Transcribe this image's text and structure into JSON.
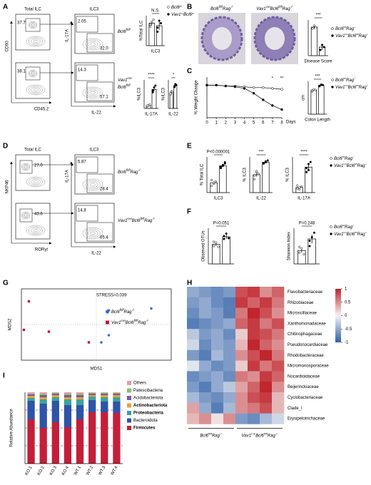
{
  "panel_labels": [
    "A",
    "B",
    "C",
    "D",
    "E",
    "F",
    "G",
    "H",
    "I"
  ],
  "A": {
    "titles": [
      "Total ILC",
      "ILC3"
    ],
    "total_axes": [
      "CD90",
      "CD45.2"
    ],
    "ilc3_axes": [
      "IL-17A",
      "IL-22"
    ],
    "total_gates": [
      "37.7",
      "38.1"
    ],
    "ilc3_gates": [
      [
        "2.05",
        "32.0"
      ],
      [
        "14.3",
        "57.1"
      ]
    ],
    "row_labels": [
      [
        [
          "Bcl6",
          "fl/fl"
        ]
      ],
      [
        [
          "Vav1",
          "cre"
        ],
        [
          "Bcl6",
          "fl/fl"
        ]
      ]
    ],
    "legend": [
      [
        "Bcl6",
        "fl/fl"
      ],
      [
        "Vav1",
        "Cre",
        "Bcl6",
        "fl/fl"
      ]
    ],
    "charts": [
      {
        "ylabel": "%Total ILC",
        "categories": [
          "ILC3"
        ],
        "sig": [
          "N.S."
        ],
        "ylim": [
          0,
          60
        ],
        "series": [
          {
            "color": "#ffffff",
            "values": [
              45
            ],
            "errors": [
              5
            ],
            "points": [
              [
                38,
                48,
                52,
                42
              ]
            ]
          },
          {
            "color": "#000000",
            "values": [
              40
            ],
            "errors": [
              8
            ],
            "points": [
              [
                28,
                50,
                45,
                36
              ]
            ]
          }
        ]
      },
      {
        "ylabel": "%ILC3",
        "categories": [
          "IL-17A"
        ],
        "sig": [
          "****"
        ],
        "ylim": [
          0,
          30
        ],
        "series": [
          {
            "color": "#ffffff",
            "values": [
              3
            ],
            "errors": [
              1
            ],
            "points": [
              [
                2,
                3,
                4,
                3
              ]
            ]
          },
          {
            "color": "#000000",
            "values": [
              20
            ],
            "errors": [
              2
            ],
            "points": [
              [
                17,
                22,
                24,
                19
              ]
            ]
          }
        ]
      },
      {
        "ylabel": "%ILC3",
        "categories": [
          "IL-22"
        ],
        "sig": [
          "*"
        ],
        "ylim": [
          0,
          100
        ],
        "series": [
          {
            "color": "#ffffff",
            "values": [
              55
            ],
            "errors": [
              5
            ],
            "points": [
              [
                48,
                60,
                58,
                52
              ]
            ]
          },
          {
            "color": "#000000",
            "values": [
              80
            ],
            "errors": [
              4
            ],
            "points": [
              [
                75,
                85,
                82,
                78
              ]
            ]
          }
        ]
      }
    ]
  },
  "B": {
    "image_labels": [
      [
        "Bcl6",
        "fl/fl",
        "Rag",
        "-/-"
      ],
      [
        "Vav1",
        "cre",
        "Bcl6",
        "fl/fl",
        "Rag",
        "-/-"
      ]
    ],
    "chart": {
      "categories": [
        "Disease Score"
      ],
      "sig": [
        "***"
      ],
      "ylim": [
        0,
        5
      ],
      "series": [
        {
          "color": "#ffffff",
          "values": [
            4
          ],
          "errors": [
            0.3
          ],
          "points": [
            [
              3.8,
              4.2,
              4.0
            ]
          ]
        },
        {
          "color": "#000000",
          "values": [
            1.2
          ],
          "errors": [
            0.4
          ],
          "points": [
            [
              0.8,
              1.5,
              1.2
            ]
          ]
        }
      ]
    },
    "legend": [
      [
        "Bcl6",
        "fl/fl",
        "Rag",
        "-/-"
      ],
      [
        "Vav1",
        "Cre",
        "Bcl6",
        "fl/fl",
        "Rag",
        "-/-"
      ]
    ]
  },
  "C": {
    "line": {
      "type": "line",
      "ylabel": "% Weight Change",
      "xlabel": "Days",
      "x": [
        0,
        1,
        2,
        3,
        4,
        5,
        6,
        7,
        8
      ],
      "xlim": [
        0,
        8
      ],
      "xticks": [
        0,
        1,
        2,
        3,
        4,
        5,
        6,
        7,
        8
      ],
      "ylim": [
        -40,
        10
      ],
      "series": [
        {
          "color": "#ffffff",
          "values": [
            0,
            0,
            -1,
            -1,
            -2,
            -3,
            -3,
            -4,
            -5
          ]
        },
        {
          "color": "#000000",
          "values": [
            0,
            0,
            -1,
            -2,
            -4,
            -10,
            -18,
            -25,
            -30
          ]
        }
      ],
      "annotations": [
        {
          "x": 7,
          "text": "*"
        },
        {
          "x": 8,
          "text": "**"
        }
      ]
    },
    "colon": {
      "ylabel": "cm",
      "categories": [
        "Colon Length"
      ],
      "sig": [
        "***"
      ],
      "ylim": [
        0,
        8
      ],
      "series": [
        {
          "color": "#ffffff",
          "values": [
            5.8
          ],
          "errors": [
            0.2
          ],
          "points": [
            [
              5.5,
              6,
              5.9,
              5.8
            ]
          ]
        },
        {
          "color": "#000000",
          "values": [
            7
          ],
          "errors": [
            0.2
          ],
          "points": [
            [
              6.8,
              7.2,
              7.1,
              6.9
            ]
          ]
        }
      ]
    },
    "legend": [
      [
        "Bcl6",
        "fl/fl",
        "Rag",
        "-/-"
      ],
      [
        "Vav1",
        "Cre",
        "Bcl6",
        "fl/fl",
        "Rag",
        "-/-"
      ]
    ]
  },
  "D": {
    "titles": [
      "Total ILC",
      "ILC3"
    ],
    "total_axes": [
      "NKP46",
      "RORγt"
    ],
    "ilc3_axes": [
      "IL-17A",
      "IL-22"
    ],
    "total_gates": [
      "27.0",
      "43.6"
    ],
    "ilc3_gates": [
      [
        "5.87",
        "28.4"
      ],
      [
        "14.8",
        "65.4"
      ]
    ],
    "row_labels": [
      [
        [
          "Bcl6",
          "fl/fl",
          "Rag",
          "-/-"
        ]
      ],
      [
        [
          "Vav1",
          "cre",
          "Bcl6",
          "fl/fl",
          "Rag",
          "-/-"
        ]
      ]
    ]
  },
  "E": {
    "charts": [
      {
        "ylabel": "% Total ILC",
        "categories": [
          "ILC3"
        ],
        "sig": [
          "P<0.000001"
        ],
        "ylim": [
          0,
          80
        ],
        "series": [
          {
            "color": "#ffffff",
            "values": [
              22
            ],
            "errors": [
              3
            ],
            "points": [
              [
                15,
                20,
                25,
                28,
                22
              ]
            ]
          },
          {
            "color": "#000000",
            "values": [
              60
            ],
            "errors": [
              3
            ],
            "points": [
              [
                55,
                62,
                65,
                58,
                60,
                68
              ]
            ]
          }
        ]
      },
      {
        "ylabel": "% ILC3",
        "categories": [
          "IL-22"
        ],
        "sig": [
          "***"
        ],
        "ylim": [
          0,
          80
        ],
        "series": [
          {
            "color": "#ffffff",
            "values": [
              40
            ],
            "errors": [
              4
            ],
            "points": [
              [
                30,
                45,
                42,
                38,
                48
              ]
            ]
          },
          {
            "color": "#000000",
            "values": [
              68
            ],
            "errors": [
              2
            ],
            "points": [
              [
                65,
                70,
                72,
                66,
                68
              ]
            ]
          }
        ]
      },
      {
        "ylabel": "% ILC3",
        "categories": [
          "IL-17A"
        ],
        "sig": [
          "****"
        ],
        "ylim": [
          0,
          35
        ],
        "series": [
          {
            "color": "#ffffff",
            "values": [
              5
            ],
            "errors": [
              1
            ],
            "points": [
              [
                4,
                5,
                6,
                7,
                3
              ]
            ]
          },
          {
            "color": "#000000",
            "values": [
              25
            ],
            "errors": [
              2
            ],
            "points": [
              [
                20,
                28,
                30,
                24,
                22
              ]
            ]
          }
        ]
      }
    ],
    "legend": [
      [
        "Bcl6",
        "fl/fl",
        "Rag",
        "-/-"
      ],
      [
        "Vav1",
        "Cre",
        "Bcl6",
        "fl/fl",
        "Rag",
        "-/-"
      ]
    ]
  },
  "F": {
    "charts": [
      {
        "ylabel": "Observed OTUs",
        "categories": [
          null
        ],
        "sig": [
          "P=0.051"
        ],
        "ylim": [
          0,
          1000
        ],
        "series": [
          {
            "color": "#ffffff",
            "values": [
              550
            ],
            "errors": [
              50
            ],
            "points": [
              [
                500,
                600,
                480,
                620
              ]
            ]
          },
          {
            "color": "#000000",
            "values": [
              760
            ],
            "errors": [
              60
            ],
            "points": [
              [
                700,
                850,
                720,
                780
              ]
            ]
          }
        ]
      },
      {
        "ylabel": "Shannon Index",
        "categories": [
          null
        ],
        "sig": [
          "P=0.248"
        ],
        "ylim": [
          0,
          8
        ],
        "series": [
          {
            "color": "#ffffff",
            "values": [
              3
            ],
            "errors": [
              0.5
            ],
            "points": [
              [
                2.5,
                3.5,
                2.2,
                3.8
              ]
            ]
          },
          {
            "color": "#000000",
            "values": [
              5.6
            ],
            "errors": [
              1
            ],
            "points": [
              [
                4,
                6,
                7,
                5.2
              ]
            ]
          }
        ]
      }
    ],
    "legend": [
      [
        "Bcl6",
        "fl/fl",
        "Rag",
        "-/-"
      ],
      [
        "Vav1",
        "Cre",
        "Bcl6",
        "fl/fl",
        "Rag",
        "-/-"
      ]
    ]
  },
  "G": {
    "type": "scatter",
    "title": "STRESS=0.039",
    "xlabel": "MDS1",
    "ylabel": "MDS2",
    "xlim": [
      -0.3,
      0.3
    ],
    "ylim": [
      -0.2,
      0.2
    ],
    "series": [
      {
        "name": [
          "Bcl6",
          "fl/fl",
          "Rag",
          "-/-"
        ],
        "color": "#3a6fc4",
        "marker": "circle",
        "x": [
          0.05,
          0.22,
          0.05,
          0.02
        ],
        "y": [
          0.08,
          0.09,
          -0.06,
          -0.1
        ]
      },
      {
        "name": [
          "Vav1",
          "cre",
          "Bcl6",
          "fl/fl",
          "Rag",
          "-/-"
        ],
        "color": "#c0143c",
        "marker": "square",
        "x": [
          -0.27,
          -0.29,
          -0.19,
          -0.03
        ],
        "y": [
          0.13,
          -0.03,
          -0.04,
          -0.1
        ]
      }
    ]
  },
  "H": {
    "type": "heatmap",
    "rows": [
      "Flavobacteriaceae",
      "Rhizobiaceae",
      "Microscillaceae",
      "Xanthomonadaceae",
      "Chitinophagaceae",
      "Pseudonocardiaceae",
      "Rhodobacteraceae",
      "Micromonosporaceae",
      "Nocardioidaceae",
      "Beijerinckiaceae",
      "Cyclobacteriaceae",
      "Clade_I",
      "Erysipelotrichaceae"
    ],
    "values": [
      [
        -0.5,
        -0.6,
        -0.7,
        -0.6,
        0.8,
        0.9,
        0.5,
        0.7
      ],
      [
        -0.6,
        -0.5,
        -0.7,
        -0.8,
        0.9,
        0.7,
        0.9,
        0.6
      ],
      [
        -0.7,
        -0.5,
        -0.6,
        -0.8,
        0.6,
        1.0,
        0.8,
        0.5
      ],
      [
        -0.8,
        -0.7,
        -0.6,
        -0.5,
        0.7,
        0.9,
        0.6,
        0.8
      ],
      [
        -0.3,
        -0.6,
        -0.5,
        -0.7,
        0.2,
        0.9,
        0.8,
        0.6
      ],
      [
        -0.2,
        -0.7,
        -0.5,
        -0.6,
        0.3,
        1.0,
        0.7,
        0.5
      ],
      [
        -0.6,
        -0.8,
        -0.4,
        -0.6,
        0.5,
        0.8,
        1.0,
        0.6
      ],
      [
        -0.1,
        -0.5,
        -0.7,
        -0.6,
        0.2,
        0.9,
        0.6,
        0.8
      ],
      [
        -0.7,
        -0.6,
        -0.5,
        -0.7,
        0.6,
        0.5,
        0.9,
        0.7
      ],
      [
        -0.6,
        -0.8,
        -0.5,
        -0.3,
        0.4,
        0.7,
        1.0,
        0.5
      ],
      [
        -0.4,
        -0.6,
        -0.7,
        -0.5,
        0.5,
        0.8,
        0.9,
        0.3
      ],
      [
        0.4,
        -0.5,
        -0.8,
        -0.4,
        0.5,
        0.6,
        0.8,
        0.3
      ],
      [
        0.3,
        0.5,
        0.1,
        0.5,
        -0.6,
        -0.7,
        -0.4,
        -0.2
      ]
    ],
    "zlim": [
      -1,
      1
    ],
    "colors": [
      "#2f5fa8",
      "#f5f5f5",
      "#c0262d"
    ],
    "colorbar_ticks": [
      1,
      0.5,
      0,
      -0.5,
      -1
    ],
    "groups": [
      {
        "label": [
          "Bcl6",
          "fl/fl",
          "Rag",
          "-/-"
        ],
        "columns": 4
      },
      {
        "label": [
          "Vav1",
          "Cre",
          "Bcl6",
          "fl/fl",
          "Rag",
          "-/-"
        ],
        "columns": 4
      }
    ]
  },
  "I": {
    "type": "stacked_bar",
    "ylabel": "Relative Abundance",
    "categories": [
      "KO.1",
      "KO.2",
      "KO.3",
      "KO.4",
      "WT.1",
      "WT.2",
      "WT.3",
      "WT.4"
    ],
    "ylim": [
      0,
      1
    ],
    "grid_lines": [
      0.25,
      0.5,
      0.75
    ],
    "series": [
      {
        "name": "Firmicutes",
        "color": "#c41e3a",
        "label_color": "#c41e3a",
        "label_weight": "bold",
        "values": [
          0.62,
          0.5,
          0.58,
          0.51,
          0.62,
          0.72,
          0.72,
          0.71
        ]
      },
      {
        "name": "Bacteroidota",
        "color": "#2d54a8",
        "label_color": "#555555",
        "label_weight": "normal",
        "values": [
          0.26,
          0.34,
          0.3,
          0.31,
          0.2,
          0.17,
          0.15,
          0.16
        ]
      },
      {
        "name": "Proteobacteria",
        "color": "#3aa39a",
        "label_color": "#3aa39a",
        "label_weight": "bold",
        "values": [
          0.04,
          0.06,
          0.05,
          0.08,
          0.08,
          0.05,
          0.06,
          0.06
        ]
      },
      {
        "name": "Actinobacteriota",
        "color": "#e8a23a",
        "label_color": "#e8a23a",
        "label_weight": "bold",
        "values": [
          0.03,
          0.03,
          0.03,
          0.03,
          0.03,
          0.02,
          0.03,
          0.03
        ]
      },
      {
        "name": "Acidobacteriota",
        "color": "#7a5aa6",
        "label_color": "#555555",
        "label_weight": "normal",
        "values": [
          0.02,
          0.03,
          0.02,
          0.03,
          0.03,
          0.02,
          0.02,
          0.02
        ]
      },
      {
        "name": "Patescibacteria",
        "color": "#8cc06a",
        "label_color": "#555555",
        "label_weight": "normal",
        "values": [
          0.01,
          0.02,
          0.01,
          0.02,
          0.02,
          0.01,
          0.01,
          0.01
        ]
      },
      {
        "name": "Others",
        "color": "#e89aa8",
        "label_color": "#555555",
        "label_weight": "normal",
        "values": [
          0.02,
          0.02,
          0.01,
          0.02,
          0.02,
          0.01,
          0.01,
          0.01
        ]
      }
    ]
  }
}
